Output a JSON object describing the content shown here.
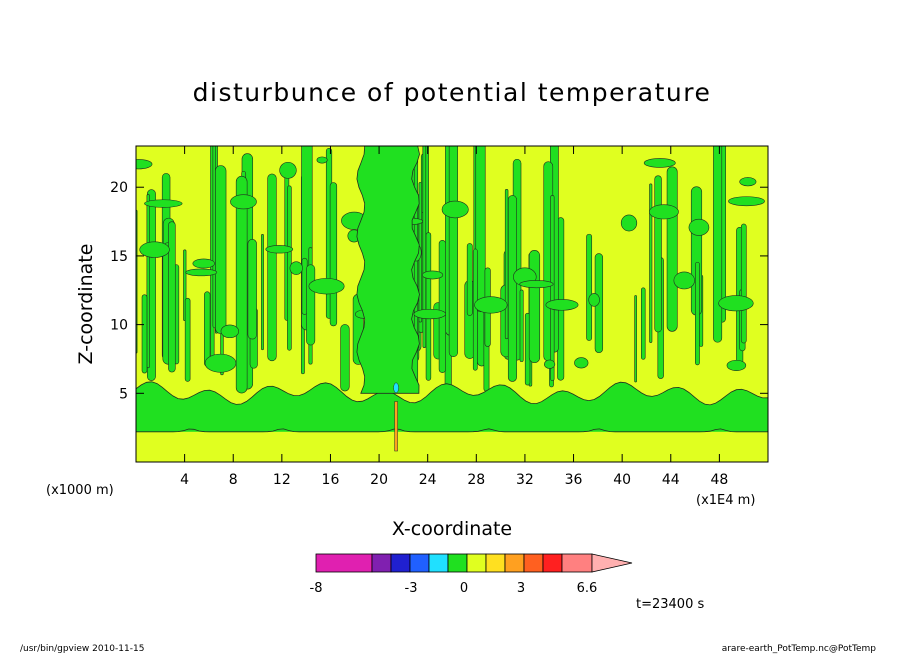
{
  "chart_data": {
    "type": "heatmap",
    "title": "disturbunce of potential temperature",
    "xlabel": "X-coordinate",
    "ylabel": "Z-coordinate",
    "x_unit_left": "(x1000 m)",
    "x_unit_right": "(x1E4 m)",
    "xlim": [
      0,
      52
    ],
    "ylim": [
      0,
      23
    ],
    "x_ticks": [
      4,
      8,
      12,
      16,
      20,
      24,
      28,
      32,
      36,
      40,
      44,
      48
    ],
    "y_ticks": [
      5,
      10,
      15,
      20
    ],
    "colorbar": {
      "colors": [
        "#e020b0",
        "#8020b0",
        "#2020d0",
        "#2060ff",
        "#20e0ff",
        "#20e020",
        "#e0ff20",
        "#ffe020",
        "#ffa020",
        "#ff6020",
        "#ff2020",
        "#ff8080",
        "#ffb0b0"
      ],
      "tick_labels": [
        "-8",
        "-3",
        "0",
        "3",
        "6.6"
      ],
      "tick_values": [
        -8,
        -3,
        0,
        3,
        6.6
      ],
      "extend": "max"
    },
    "regions": [
      {
        "name": "lower green layer",
        "z_range": [
          2.2,
          5.0
        ],
        "color": "#20e020"
      },
      {
        "name": "surface yellow band",
        "z_range": [
          0.0,
          2.2
        ],
        "color": "#e0ff20"
      },
      {
        "name": "upper mixed layer",
        "z_range": [
          5.0,
          23.0
        ],
        "colors": [
          "#e0ff20",
          "#20e020"
        ]
      },
      {
        "name": "central green column",
        "x_range": [
          18.5,
          23.0
        ],
        "z_range": [
          2.2,
          23.0
        ],
        "color": "#20e020"
      }
    ]
  },
  "time_label": "t=23400 s",
  "footer": {
    "left": "/usr/bin/gpview  2010-11-15",
    "right": "arare-earth_PotTemp.nc@PotTemp"
  }
}
